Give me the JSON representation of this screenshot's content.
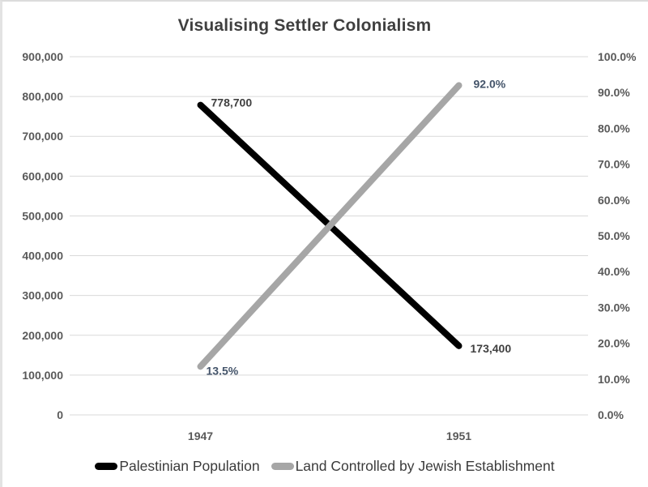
{
  "chart_data": {
    "type": "line",
    "title": "Visualising Settler Colonialism",
    "categories": [
      "1947",
      "1951"
    ],
    "series": [
      {
        "name": "Palestinian Population",
        "axis": "left",
        "color": "#000000",
        "values": [
          778700,
          173400
        ],
        "data_labels": [
          "778,700",
          "173,400"
        ],
        "data_label_color": "#404040"
      },
      {
        "name": "Land Controlled by Jewish Establishment",
        "axis": "right",
        "color": "#a6a6a6",
        "values": [
          13.5,
          92.0
        ],
        "data_labels": [
          "13.5%",
          "92.0%"
        ],
        "data_label_color": "#44546a"
      }
    ],
    "left_axis": {
      "min": 0,
      "max": 900000,
      "tick_labels": [
        "0",
        "100,000",
        "200,000",
        "300,000",
        "400,000",
        "500,000",
        "600,000",
        "700,000",
        "800,000",
        "900,000"
      ]
    },
    "right_axis": {
      "min": 0,
      "max": 100,
      "tick_labels": [
        "0.0%",
        "10.0%",
        "20.0%",
        "30.0%",
        "40.0%",
        "50.0%",
        "60.0%",
        "70.0%",
        "80.0%",
        "90.0%",
        "100.0%"
      ]
    },
    "grid": true,
    "legend_position": "bottom",
    "line_width": 8,
    "colors": {
      "gridline": "#d9d9d9",
      "axis_label": "#595959",
      "title": "#3f3f3f"
    },
    "label_offsets": [
      [
        [
          13,
          2
        ],
        [
          14,
          8
        ]
      ],
      [
        [
          7,
          10
        ],
        [
          18,
          3
        ]
      ]
    ]
  }
}
